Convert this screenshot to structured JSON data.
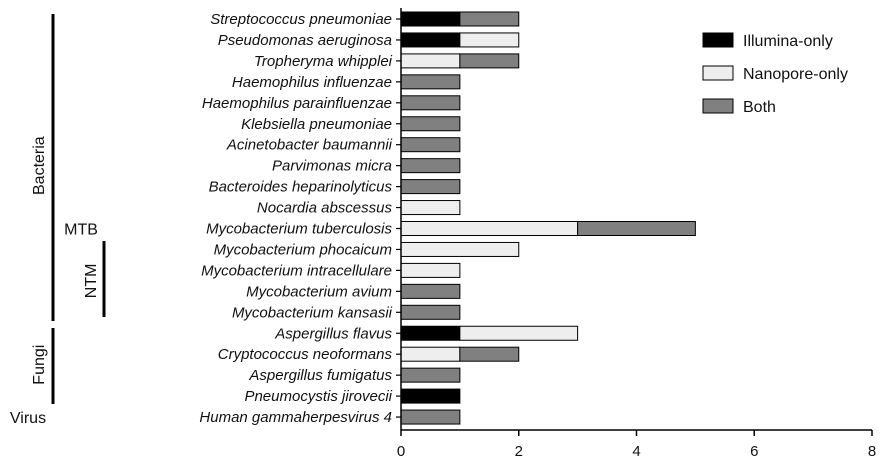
{
  "chart_data": {
    "type": "bar",
    "orientation": "horizontal",
    "stacked": true,
    "categories": [
      "Streptococcus pneumoniae",
      "Pseudomonas aeruginosa",
      "Tropheryma whipplei",
      "Haemophilus influenzae",
      "Haemophilus parainfluenzae",
      "Klebsiella pneumoniae",
      "Acinetobacter baumannii",
      "Parvimonas micra",
      "Bacteroides heparinolyticus",
      "Nocardia abscessus",
      "Mycobacterium tuberculosis",
      "Mycobacterium phocaicum",
      "Mycobacterium intracellulare",
      "Mycobacterium avium",
      "Mycobacterium kansasii",
      "Aspergillus flavus",
      "Cryptococcus neoformans",
      "Aspergillus fumigatus",
      "Pneumocystis jirovecii",
      "Human gammaherpesvirus 4"
    ],
    "series": [
      {
        "name": "Illumina-only",
        "color": "#000000",
        "values": [
          1,
          1,
          0,
          0,
          0,
          0,
          0,
          0,
          0,
          0,
          0,
          0,
          0,
          0,
          0,
          1,
          0,
          0,
          1,
          0
        ]
      },
      {
        "name": "Nanopore-only",
        "color": "#eeeeee",
        "values": [
          0,
          1,
          1,
          0,
          0,
          0,
          0,
          0,
          0,
          1,
          3,
          2,
          1,
          0,
          0,
          2,
          1,
          0,
          0,
          0
        ]
      },
      {
        "name": "Both",
        "color": "#808080",
        "values": [
          1,
          0,
          1,
          1,
          1,
          1,
          1,
          1,
          1,
          0,
          2,
          0,
          0,
          1,
          1,
          0,
          1,
          1,
          0,
          1
        ]
      }
    ],
    "xlim": [
      0,
      8
    ],
    "xticks": [
      "0",
      "2",
      "4",
      "6",
      "8"
    ],
    "xlabel": "",
    "ylabel": "",
    "legend_position": "top-right",
    "grid": false,
    "groups": [
      {
        "label": "Bacteria",
        "from": 0,
        "to": 14
      },
      {
        "label": "MTB",
        "from": 10,
        "to": 10
      },
      {
        "label": "NTM",
        "from": 11,
        "to": 14
      },
      {
        "label": "Fungi",
        "from": 15,
        "to": 18
      },
      {
        "label": "Virus",
        "from": 19,
        "to": 19
      }
    ]
  }
}
